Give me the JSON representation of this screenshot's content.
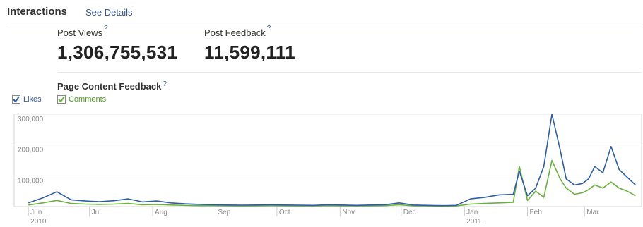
{
  "header": {
    "title": "Interactions",
    "see_details": "See Details"
  },
  "metrics": {
    "post_views": {
      "label": "Post Views",
      "help": "?",
      "value": "1,306,755,531"
    },
    "post_feedback": {
      "label": "Post Feedback",
      "help": "?",
      "value": "11,599,111"
    }
  },
  "section": {
    "title": "Page Content Feedback",
    "help": "?"
  },
  "legend": {
    "likes": {
      "label": "Likes",
      "checked": true,
      "color": "#2f5ea8"
    },
    "comments": {
      "label": "Comments",
      "checked": true,
      "color": "#6ab23e"
    }
  },
  "chart_data": {
    "type": "line",
    "title": "",
    "xlabel": "",
    "ylabel": "",
    "ylim": [
      0,
      300000
    ],
    "y_ticks": [
      "100,000",
      "200,000",
      "300,000"
    ],
    "x_ticks": [
      "Jun",
      "Jul",
      "Aug",
      "Sep",
      "Oct",
      "Nov",
      "Dec",
      "Jan",
      "Feb",
      "Mar"
    ],
    "x_tick_years": [
      "2010",
      "2011"
    ],
    "grid": true,
    "series": [
      {
        "name": "Likes",
        "color": "#2f5ea8",
        "x": [
          "2010-06-01",
          "2010-06-08",
          "2010-06-15",
          "2010-06-22",
          "2010-06-29",
          "2010-07-06",
          "2010-07-13",
          "2010-07-20",
          "2010-07-27",
          "2010-08-03",
          "2010-08-10",
          "2010-08-17",
          "2010-08-24",
          "2010-08-31",
          "2010-09-07",
          "2010-09-14",
          "2010-09-21",
          "2010-09-28",
          "2010-10-05",
          "2010-10-12",
          "2010-10-19",
          "2010-10-26",
          "2010-11-02",
          "2010-11-09",
          "2010-11-16",
          "2010-11-23",
          "2010-11-30",
          "2010-12-07",
          "2010-12-14",
          "2010-12-21",
          "2010-12-28",
          "2011-01-04",
          "2011-01-11",
          "2011-01-18",
          "2011-01-25",
          "2011-01-28",
          "2011-02-01",
          "2011-02-05",
          "2011-02-09",
          "2011-02-13",
          "2011-02-17",
          "2011-02-20",
          "2011-02-24",
          "2011-02-28",
          "2011-03-03",
          "2011-03-06",
          "2011-03-10",
          "2011-03-14",
          "2011-03-18",
          "2011-03-22",
          "2011-03-26"
        ],
        "y": [
          12000,
          28000,
          48000,
          22000,
          18000,
          16000,
          19000,
          25000,
          15000,
          18000,
          12000,
          9000,
          7000,
          6000,
          5000,
          4500,
          5000,
          6000,
          5000,
          4500,
          4000,
          6000,
          5000,
          4000,
          5000,
          6000,
          12000,
          5000,
          4000,
          3000,
          4000,
          25000,
          30000,
          38000,
          40000,
          115000,
          35000,
          60000,
          130000,
          300000,
          185000,
          90000,
          70000,
          75000,
          90000,
          130000,
          110000,
          195000,
          120000,
          95000,
          70000
        ]
      },
      {
        "name": "Comments",
        "color": "#6ab23e",
        "x": [
          "2010-06-01",
          "2010-06-08",
          "2010-06-15",
          "2010-06-22",
          "2010-06-29",
          "2010-07-06",
          "2010-07-13",
          "2010-07-20",
          "2010-07-27",
          "2010-08-03",
          "2010-08-10",
          "2010-08-17",
          "2010-08-24",
          "2010-08-31",
          "2010-09-07",
          "2010-09-14",
          "2010-09-21",
          "2010-09-28",
          "2010-10-05",
          "2010-10-12",
          "2010-10-19",
          "2010-10-26",
          "2010-11-02",
          "2010-11-09",
          "2010-11-16",
          "2010-11-23",
          "2010-11-30",
          "2010-12-07",
          "2010-12-14",
          "2010-12-21",
          "2010-12-28",
          "2011-01-04",
          "2011-01-11",
          "2011-01-18",
          "2011-01-25",
          "2011-01-28",
          "2011-02-01",
          "2011-02-05",
          "2011-02-09",
          "2011-02-13",
          "2011-02-17",
          "2011-02-20",
          "2011-02-24",
          "2011-02-28",
          "2011-03-03",
          "2011-03-06",
          "2011-03-10",
          "2011-03-14",
          "2011-03-18",
          "2011-03-22",
          "2011-03-26"
        ],
        "y": [
          5000,
          12000,
          20000,
          10000,
          8000,
          7000,
          8000,
          10000,
          6000,
          7000,
          5000,
          4000,
          3000,
          3000,
          2500,
          2000,
          2500,
          3000,
          2500,
          2000,
          2000,
          3000,
          2500,
          2000,
          2500,
          3000,
          6000,
          2500,
          2000,
          1500,
          2000,
          8000,
          10000,
          12000,
          14000,
          130000,
          20000,
          50000,
          30000,
          150000,
          90000,
          60000,
          40000,
          45000,
          55000,
          70000,
          60000,
          80000,
          60000,
          50000,
          35000
        ]
      }
    ]
  }
}
